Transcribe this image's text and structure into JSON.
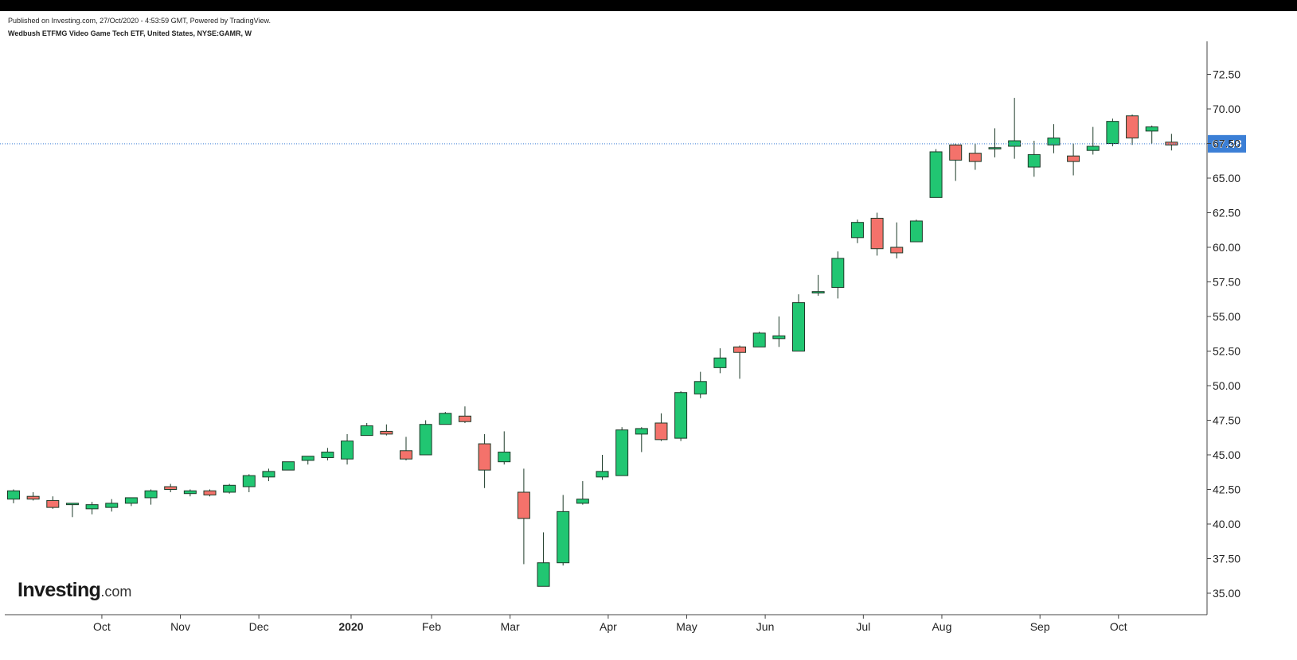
{
  "header": {
    "published": "Published on Investing.com, 27/Oct/2020 - 4:53:59 GMT, Powered by TradingView.",
    "symbol": "Wedbush ETFMG Video Game Tech ETF, United States, NYSE:GAMR, W"
  },
  "logo": {
    "brand": "Investing",
    "suffix": ".com"
  },
  "colors": {
    "up": "#21c672",
    "down": "#f4726b",
    "wick": "#1c3a28",
    "price_line": "#3b7fd6",
    "price_label_bg": "#3b7fd6",
    "axis": "#444444",
    "text": "#222222"
  },
  "chart_data": {
    "type": "candlestick",
    "timeframe": "W",
    "ylim": [
      33.75,
      74.5
    ],
    "y_ticks": [
      "35.00",
      "37.50",
      "40.00",
      "42.50",
      "45.00",
      "47.50",
      "50.00",
      "52.50",
      "55.00",
      "57.50",
      "60.00",
      "62.50",
      "65.00",
      "67.50",
      "70.00",
      "72.50"
    ],
    "last_price": 67.48,
    "last_price_label": "67.48",
    "x_labels": [
      {
        "label": "Oct",
        "week": 4.5,
        "bold": false
      },
      {
        "label": "Nov",
        "week": 8.5,
        "bold": false
      },
      {
        "label": "Dec",
        "week": 12.5,
        "bold": false
      },
      {
        "label": "2020",
        "week": 17.2,
        "bold": true
      },
      {
        "label": "Feb",
        "week": 21.3,
        "bold": false
      },
      {
        "label": "Mar",
        "week": 25.3,
        "bold": false
      },
      {
        "label": "Apr",
        "week": 30.3,
        "bold": false
      },
      {
        "label": "May",
        "week": 34.3,
        "bold": false
      },
      {
        "label": "Jun",
        "week": 38.3,
        "bold": false
      },
      {
        "label": "Jul",
        "week": 43.3,
        "bold": false
      },
      {
        "label": "Aug",
        "week": 47.3,
        "bold": false
      },
      {
        "label": "Sep",
        "week": 52.3,
        "bold": false
      },
      {
        "label": "Oct",
        "week": 56.3,
        "bold": false
      }
    ],
    "candles": [
      {
        "o": 41.8,
        "h": 42.5,
        "l": 41.5,
        "c": 42.4
      },
      {
        "o": 42.0,
        "h": 42.3,
        "l": 41.7,
        "c": 41.8
      },
      {
        "o": 41.7,
        "h": 42.0,
        "l": 41.1,
        "c": 41.2
      },
      {
        "o": 41.4,
        "h": 41.5,
        "l": 40.5,
        "c": 41.5
      },
      {
        "o": 41.1,
        "h": 41.6,
        "l": 40.7,
        "c": 41.4
      },
      {
        "o": 41.2,
        "h": 41.8,
        "l": 40.9,
        "c": 41.5
      },
      {
        "o": 41.5,
        "h": 41.9,
        "l": 41.3,
        "c": 41.9
      },
      {
        "o": 41.9,
        "h": 42.5,
        "l": 41.4,
        "c": 42.4
      },
      {
        "o": 42.7,
        "h": 42.9,
        "l": 42.3,
        "c": 42.5
      },
      {
        "o": 42.2,
        "h": 42.5,
        "l": 42.0,
        "c": 42.4
      },
      {
        "o": 42.4,
        "h": 42.5,
        "l": 42.0,
        "c": 42.1
      },
      {
        "o": 42.3,
        "h": 42.9,
        "l": 42.2,
        "c": 42.8
      },
      {
        "o": 42.7,
        "h": 43.6,
        "l": 42.3,
        "c": 43.5
      },
      {
        "o": 43.4,
        "h": 44.0,
        "l": 43.1,
        "c": 43.8
      },
      {
        "o": 43.9,
        "h": 44.5,
        "l": 43.9,
        "c": 44.5
      },
      {
        "o": 44.6,
        "h": 44.9,
        "l": 44.3,
        "c": 44.9
      },
      {
        "o": 44.8,
        "h": 45.5,
        "l": 44.6,
        "c": 45.2
      },
      {
        "o": 44.7,
        "h": 46.5,
        "l": 44.3,
        "c": 46.0
      },
      {
        "o": 46.4,
        "h": 47.3,
        "l": 46.4,
        "c": 47.1
      },
      {
        "o": 46.7,
        "h": 47.2,
        "l": 46.4,
        "c": 46.5
      },
      {
        "o": 45.3,
        "h": 46.3,
        "l": 44.6,
        "c": 44.7
      },
      {
        "o": 45.0,
        "h": 47.5,
        "l": 45.0,
        "c": 47.2
      },
      {
        "o": 47.2,
        "h": 48.1,
        "l": 47.2,
        "c": 48.0
      },
      {
        "o": 47.8,
        "h": 48.5,
        "l": 47.3,
        "c": 47.4
      },
      {
        "o": 45.8,
        "h": 46.5,
        "l": 42.6,
        "c": 43.9
      },
      {
        "o": 44.5,
        "h": 46.7,
        "l": 44.3,
        "c": 45.2
      },
      {
        "o": 42.3,
        "h": 44.0,
        "l": 37.1,
        "c": 40.4
      },
      {
        "o": 35.5,
        "h": 39.4,
        "l": 35.5,
        "c": 37.2
      },
      {
        "o": 37.2,
        "h": 42.1,
        "l": 37.0,
        "c": 40.9
      },
      {
        "o": 41.5,
        "h": 43.1,
        "l": 41.4,
        "c": 41.8
      },
      {
        "o": 43.4,
        "h": 45.0,
        "l": 43.2,
        "c": 43.8
      },
      {
        "o": 43.5,
        "h": 47.0,
        "l": 43.5,
        "c": 46.8
      },
      {
        "o": 46.5,
        "h": 47.0,
        "l": 45.2,
        "c": 46.9
      },
      {
        "o": 47.3,
        "h": 48.0,
        "l": 46.0,
        "c": 46.1
      },
      {
        "o": 46.2,
        "h": 49.6,
        "l": 46.0,
        "c": 49.5
      },
      {
        "o": 49.4,
        "h": 51.0,
        "l": 49.1,
        "c": 50.3
      },
      {
        "o": 51.3,
        "h": 52.7,
        "l": 50.9,
        "c": 52.0
      },
      {
        "o": 52.8,
        "h": 52.9,
        "l": 50.5,
        "c": 52.4
      },
      {
        "o": 52.8,
        "h": 53.9,
        "l": 52.8,
        "c": 53.8
      },
      {
        "o": 53.4,
        "h": 55.0,
        "l": 52.8,
        "c": 53.6
      },
      {
        "o": 52.5,
        "h": 56.6,
        "l": 52.5,
        "c": 56.0
      },
      {
        "o": 56.7,
        "h": 58.0,
        "l": 56.5,
        "c": 56.8
      },
      {
        "o": 57.1,
        "h": 59.7,
        "l": 56.3,
        "c": 59.2
      },
      {
        "o": 60.7,
        "h": 62.0,
        "l": 60.3,
        "c": 61.8
      },
      {
        "o": 62.1,
        "h": 62.5,
        "l": 59.4,
        "c": 59.9
      },
      {
        "o": 60.0,
        "h": 61.8,
        "l": 59.2,
        "c": 59.6
      },
      {
        "o": 60.4,
        "h": 62.0,
        "l": 60.4,
        "c": 61.9
      },
      {
        "o": 63.6,
        "h": 67.1,
        "l": 63.6,
        "c": 66.9
      },
      {
        "o": 67.4,
        "h": 67.5,
        "l": 64.8,
        "c": 66.3
      },
      {
        "o": 66.8,
        "h": 67.5,
        "l": 65.6,
        "c": 66.2
      },
      {
        "o": 67.2,
        "h": 68.6,
        "l": 66.5,
        "c": 67.2
      },
      {
        "o": 67.3,
        "h": 70.8,
        "l": 66.4,
        "c": 67.7
      },
      {
        "o": 65.8,
        "h": 67.7,
        "l": 65.1,
        "c": 66.7
      },
      {
        "o": 67.4,
        "h": 68.9,
        "l": 66.8,
        "c": 67.9
      },
      {
        "o": 66.6,
        "h": 67.5,
        "l": 65.2,
        "c": 66.2
      },
      {
        "o": 67.0,
        "h": 68.7,
        "l": 66.7,
        "c": 67.3
      },
      {
        "o": 67.5,
        "h": 69.3,
        "l": 67.3,
        "c": 69.1
      },
      {
        "o": 69.5,
        "h": 69.6,
        "l": 67.4,
        "c": 67.9
      },
      {
        "o": 68.4,
        "h": 68.8,
        "l": 67.5,
        "c": 68.7
      },
      {
        "o": 67.6,
        "h": 68.2,
        "l": 67.0,
        "c": 67.4
      }
    ]
  }
}
